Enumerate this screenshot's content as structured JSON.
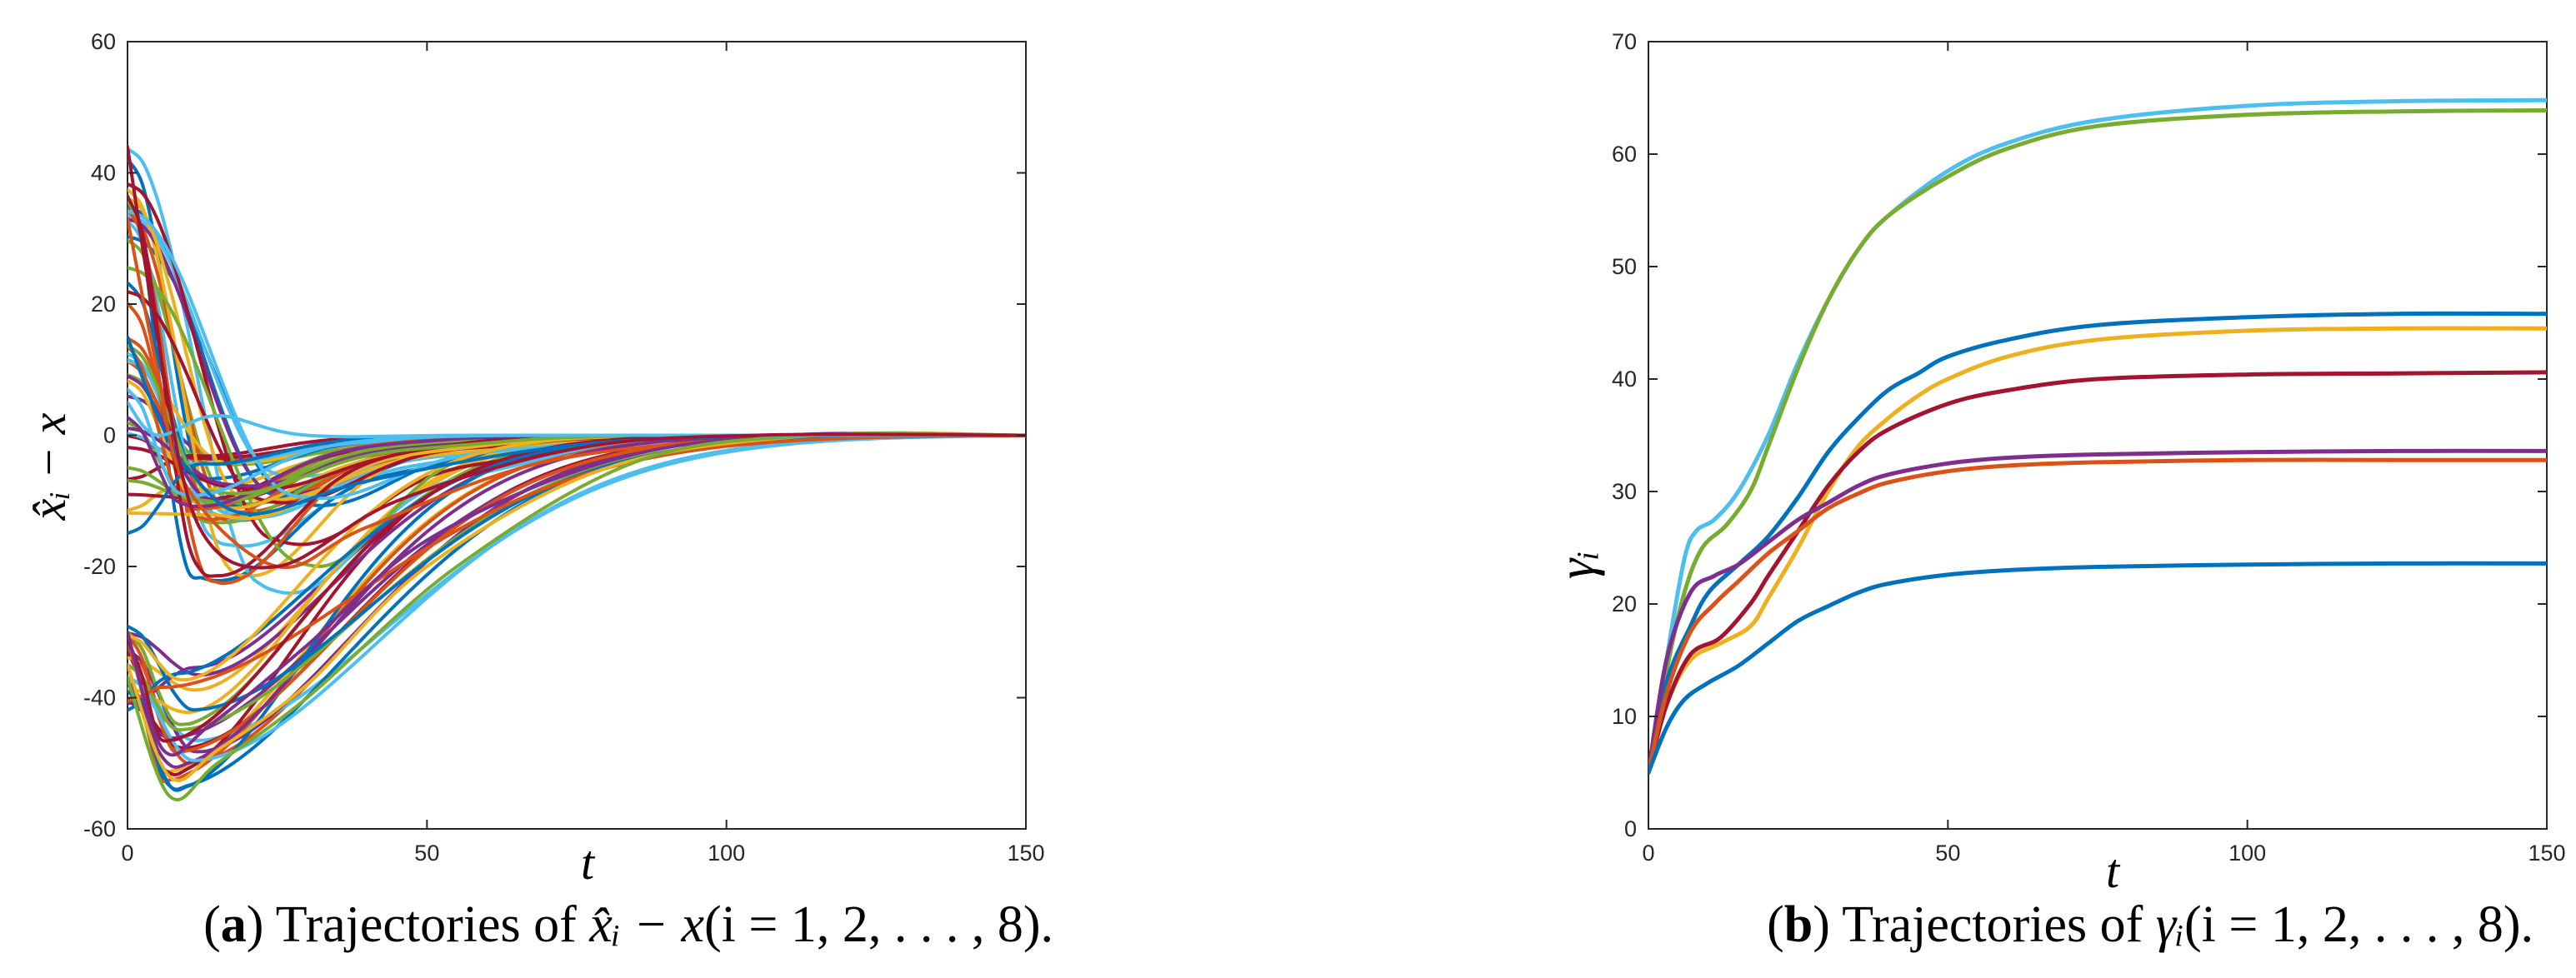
{
  "chart_data": [
    {
      "type": "line",
      "panel": "a",
      "caption_prefix": "(",
      "caption_letter": "a",
      "caption_text": ") Trajectories of x̂ᵢ − x(i = 1, 2, . . . , 8).",
      "caption_rest": ") Trajectories of ",
      "caption_math": "x̂ᵢ − x",
      "caption_index": "(i = 1, 2, . . . , 8).",
      "xlabel": "t",
      "ylabel": "x̂ᵢ − x",
      "xlim": [
        0,
        150
      ],
      "ylim": [
        -60,
        60
      ],
      "xticks": [
        "0",
        "50",
        "100",
        "150"
      ],
      "yticks": [
        "-60",
        "-40",
        "-20",
        "0",
        "20",
        "40",
        "60"
      ],
      "grid": false,
      "note": "many colored error trajectories starting between -44 and 44, dipping to about -55 and converging to 0 by t≈110",
      "series": [
        {
          "color": "#0072BD",
          "values": [
            [
              0,
              15
            ],
            [
              5,
              3
            ],
            [
              10,
              -5
            ],
            [
              20,
              -12
            ],
            [
              40,
              -7
            ],
            [
              70,
              -2
            ],
            [
              100,
              -0.2
            ],
            [
              150,
              0
            ]
          ]
        },
        {
          "color": "#D95319",
          "values": [
            [
              0,
              33
            ],
            [
              5,
              10
            ],
            [
              10,
              -8
            ],
            [
              25,
              -20
            ],
            [
              40,
              -14
            ],
            [
              70,
              -4
            ],
            [
              110,
              -0.2
            ],
            [
              150,
              0
            ]
          ]
        },
        {
          "color": "#EDB120",
          "values": [
            [
              0,
              -35
            ],
            [
              7,
              -52
            ],
            [
              15,
              -48
            ],
            [
              30,
              -38
            ],
            [
              50,
              -20
            ],
            [
              80,
              -5
            ],
            [
              115,
              0
            ],
            [
              150,
              0
            ]
          ]
        },
        {
          "color": "#7E2F8E",
          "values": [
            [
              0,
              -30
            ],
            [
              6,
              -48
            ],
            [
              14,
              -44
            ],
            [
              30,
              -32
            ],
            [
              50,
              -16
            ],
            [
              80,
              -4
            ],
            [
              110,
              0
            ],
            [
              150,
              0
            ]
          ]
        },
        {
          "color": "#77AC30",
          "values": [
            [
              0,
              -37
            ],
            [
              7,
              -55
            ],
            [
              15,
              -50
            ],
            [
              30,
              -40
            ],
            [
              55,
              -20
            ],
            [
              85,
              -4
            ],
            [
              115,
              0
            ],
            [
              150,
              0
            ]
          ]
        },
        {
          "color": "#4DBEEE",
          "values": [
            [
              0,
              5
            ],
            [
              5,
              0
            ],
            [
              15,
              3
            ],
            [
              30,
              0
            ],
            [
              60,
              0
            ],
            [
              150,
              0
            ]
          ]
        },
        {
          "color": "#A2142F",
          "values": [
            [
              0,
              44
            ],
            [
              5,
              15
            ],
            [
              12,
              -14
            ],
            [
              25,
              -20
            ],
            [
              45,
              -10
            ],
            [
              75,
              -2
            ],
            [
              105,
              0
            ],
            [
              150,
              0
            ]
          ]
        }
      ]
    },
    {
      "type": "line",
      "panel": "b",
      "caption_prefix": "(",
      "caption_letter": "b",
      "caption_rest": ") Trajectories of ",
      "caption_math": "γᵢ",
      "caption_index": "(i = 1, 2, . . . , 8).",
      "xlabel": "t",
      "ylabel": "γᵢ",
      "xlim": [
        0,
        150
      ],
      "ylim": [
        0,
        70
      ],
      "xticks": [
        "0",
        "50",
        "100",
        "150"
      ],
      "yticks": [
        "0",
        "10",
        "20",
        "30",
        "40",
        "50",
        "60",
        "70"
      ],
      "grid": false,
      "series": [
        {
          "color": "#4DBEEE",
          "values": [
            [
              0,
              5
            ],
            [
              3,
              15
            ],
            [
              6,
              24
            ],
            [
              8,
              26.5
            ],
            [
              11,
              27.5
            ],
            [
              15,
              30
            ],
            [
              20,
              35
            ],
            [
              25,
              41.5
            ],
            [
              30,
              47
            ],
            [
              35,
              51.5
            ],
            [
              40,
              54.5
            ],
            [
              50,
              58.5
            ],
            [
              60,
              61
            ],
            [
              75,
              63
            ],
            [
              100,
              64.3
            ],
            [
              125,
              64.7
            ],
            [
              150,
              64.8
            ]
          ]
        },
        {
          "color": "#77AC30",
          "values": [
            [
              0,
              5
            ],
            [
              3,
              14
            ],
            [
              6,
              21
            ],
            [
              9,
              25
            ],
            [
              13,
              27
            ],
            [
              17,
              30
            ],
            [
              20,
              34
            ],
            [
              25,
              41
            ],
            [
              30,
              47
            ],
            [
              35,
              51.5
            ],
            [
              40,
              54.5
            ],
            [
              50,
              58
            ],
            [
              60,
              60.5
            ],
            [
              75,
              62.5
            ],
            [
              100,
              63.5
            ],
            [
              125,
              63.8
            ],
            [
              150,
              63.9
            ]
          ]
        },
        {
          "color": "#0072BD",
          "values": [
            [
              0,
              5
            ],
            [
              3,
              13
            ],
            [
              7,
              18
            ],
            [
              10,
              21
            ],
            [
              15,
              23.5
            ],
            [
              20,
              26
            ],
            [
              25,
              29.5
            ],
            [
              30,
              33.5
            ],
            [
              35,
              36.5
            ],
            [
              40,
              39
            ],
            [
              45,
              40.5
            ],
            [
              50,
              42
            ],
            [
              60,
              43.5
            ],
            [
              75,
              44.8
            ],
            [
              100,
              45.5
            ],
            [
              125,
              45.8
            ],
            [
              150,
              45.8
            ]
          ]
        },
        {
          "color": "#EDB120",
          "values": [
            [
              0,
              5
            ],
            [
              3,
              11
            ],
            [
              7,
              15
            ],
            [
              12,
              16.5
            ],
            [
              17,
              18
            ],
            [
              20,
              20.5
            ],
            [
              25,
              25
            ],
            [
              30,
              30
            ],
            [
              35,
              34
            ],
            [
              40,
              36.5
            ],
            [
              45,
              38.5
            ],
            [
              50,
              40
            ],
            [
              60,
              42
            ],
            [
              75,
              43.5
            ],
            [
              100,
              44.3
            ],
            [
              125,
              44.5
            ],
            [
              150,
              44.5
            ]
          ]
        },
        {
          "color": "#A2142F",
          "values": [
            [
              0,
              5
            ],
            [
              3,
              11
            ],
            [
              7,
              15.5
            ],
            [
              12,
              17
            ],
            [
              17,
              20
            ],
            [
              20,
              22.5
            ],
            [
              25,
              26.5
            ],
            [
              30,
              30.5
            ],
            [
              35,
              33.5
            ],
            [
              40,
              35.5
            ],
            [
              50,
              37.8
            ],
            [
              60,
              39
            ],
            [
              75,
              40
            ],
            [
              100,
              40.4
            ],
            [
              125,
              40.5
            ],
            [
              150,
              40.6
            ]
          ]
        },
        {
          "color": "#7E2F8E",
          "values": [
            [
              0,
              5
            ],
            [
              3,
              15
            ],
            [
              7,
              21
            ],
            [
              11,
              22.5
            ],
            [
              15,
              23.5
            ],
            [
              20,
              25.5
            ],
            [
              25,
              27.5
            ],
            [
              30,
              29
            ],
            [
              35,
              30.5
            ],
            [
              40,
              31.5
            ],
            [
              50,
              32.5
            ],
            [
              60,
              33
            ],
            [
              75,
              33.3
            ],
            [
              100,
              33.5
            ],
            [
              125,
              33.6
            ],
            [
              150,
              33.6
            ]
          ]
        },
        {
          "color": "#D95319",
          "values": [
            [
              0,
              5
            ],
            [
              3,
              12
            ],
            [
              7,
              17.5
            ],
            [
              11,
              20
            ],
            [
              15,
              22
            ],
            [
              20,
              24.5
            ],
            [
              25,
              26.5
            ],
            [
              30,
              28.5
            ],
            [
              35,
              29.8
            ],
            [
              40,
              30.8
            ],
            [
              50,
              31.8
            ],
            [
              60,
              32.3
            ],
            [
              75,
              32.6
            ],
            [
              100,
              32.8
            ],
            [
              125,
              32.8
            ],
            [
              150,
              32.8
            ]
          ]
        },
        {
          "color": "#0072BD",
          "values": [
            [
              0,
              5
            ],
            [
              3,
              9
            ],
            [
              6,
              11.5
            ],
            [
              10,
              13
            ],
            [
              15,
              14.5
            ],
            [
              20,
              16.5
            ],
            [
              25,
              18.5
            ],
            [
              30,
              19.8
            ],
            [
              35,
              21
            ],
            [
              40,
              21.8
            ],
            [
              50,
              22.6
            ],
            [
              60,
              23
            ],
            [
              75,
              23.3
            ],
            [
              100,
              23.5
            ],
            [
              125,
              23.6
            ],
            [
              150,
              23.6
            ]
          ]
        }
      ]
    }
  ]
}
